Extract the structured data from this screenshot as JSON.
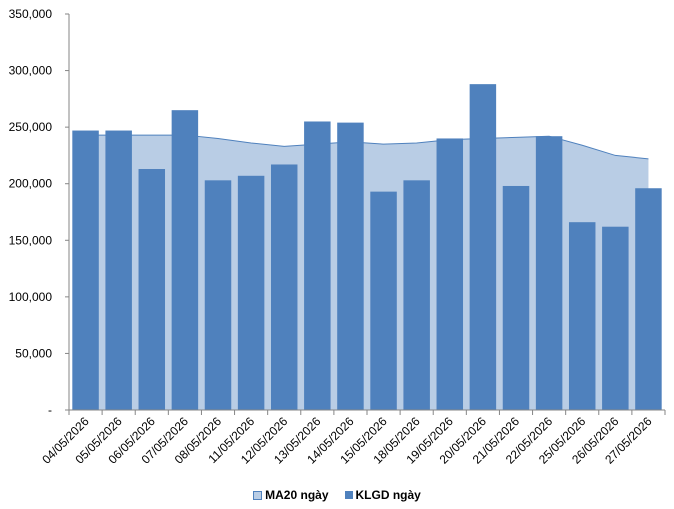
{
  "chart_data": {
    "type": "bar",
    "categories": [
      "04/05/2026",
      "05/05/2026",
      "06/05/2026",
      "07/05/2026",
      "08/05/2026",
      "11/05/2026",
      "12/05/2026",
      "13/05/2026",
      "14/05/2026",
      "15/05/2026",
      "18/05/2026",
      "19/05/2026",
      "20/05/2026",
      "21/05/2026",
      "22/05/2026",
      "25/05/2026",
      "26/05/2026",
      "27/05/2026"
    ],
    "series": [
      {
        "name": "KLGD ngày",
        "type": "bar",
        "color": "#4F81BD",
        "values": [
          247000,
          247000,
          213000,
          265000,
          203000,
          207000,
          217000,
          255000,
          254000,
          193000,
          203000,
          240000,
          288000,
          198000,
          242000,
          166000,
          162000,
          196000
        ]
      },
      {
        "name": "MA20 ngày",
        "type": "area",
        "color": "#B9CDE5",
        "values": [
          243000,
          243000,
          243000,
          243000,
          240000,
          236000,
          233000,
          235000,
          237000,
          235000,
          236000,
          239000,
          240000,
          241000,
          242000,
          234000,
          225000,
          222000
        ]
      }
    ],
    "yticks": [
      "-",
      "50,000",
      "100,000",
      "150,000",
      "200,000",
      "250,000",
      "300,000",
      "350,000"
    ],
    "ylim": [
      0,
      350000
    ],
    "xlabel": "",
    "ylabel": "",
    "legend": "bottom",
    "grid": false
  }
}
